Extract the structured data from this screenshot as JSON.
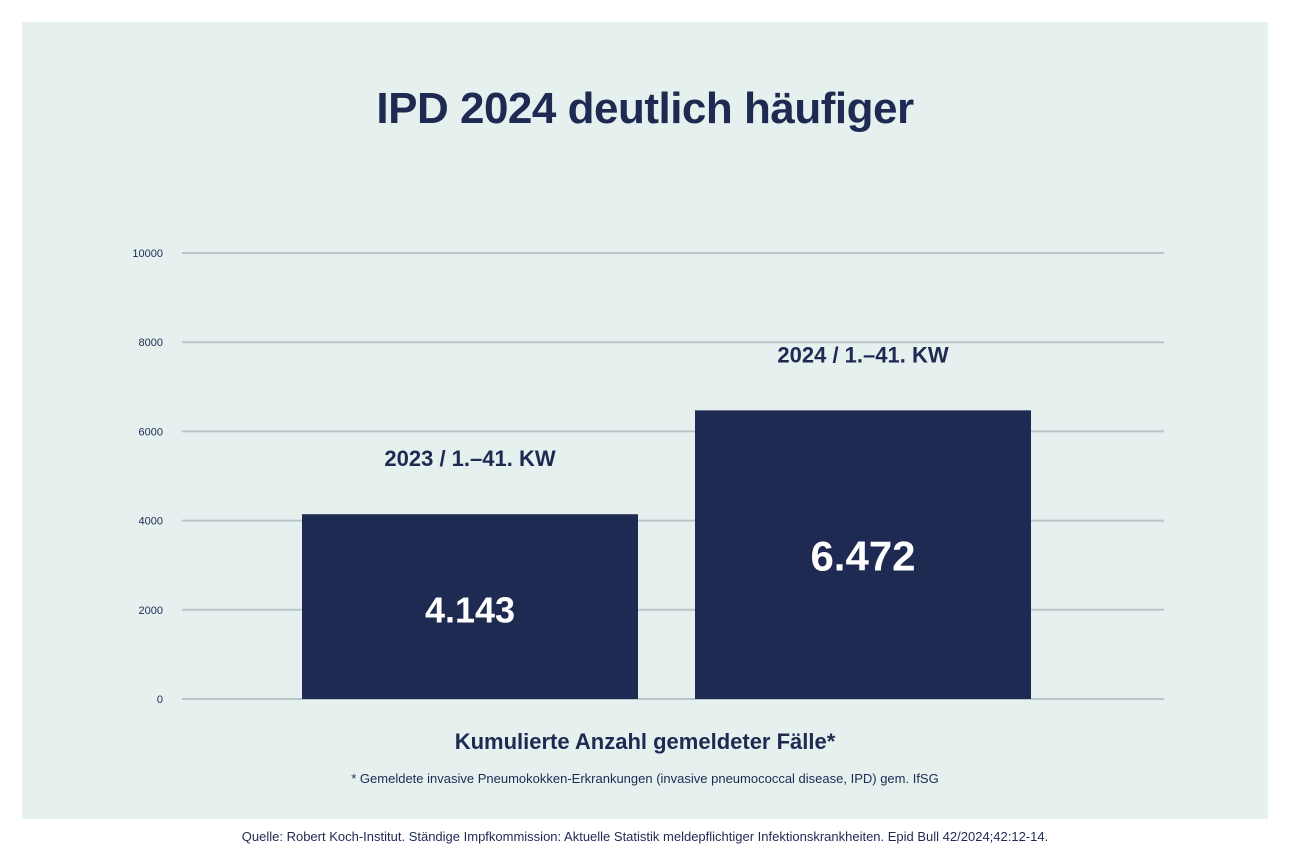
{
  "chart_data": {
    "type": "bar",
    "title": "IPD 2024 deutlich häufiger",
    "categories": [
      "2023 / 1.–41. KW",
      "2024 / 1.–41. KW"
    ],
    "values": [
      4143,
      6472
    ],
    "data_labels": [
      "4.143",
      "6.472"
    ],
    "xlabel": "Kumulierte Anzahl gemeldeter Fälle*",
    "ylabel": "",
    "ylim": [
      0,
      10000
    ],
    "yticks": [
      0,
      2000,
      4000,
      6000,
      8000,
      10000
    ],
    "grid": true,
    "colors": {
      "bar": "#1e2a52",
      "grid": "#b8c6cc",
      "text": "#1e2a52",
      "background": "#e6f0ef"
    }
  },
  "footnote": "* Gemeldete invasive Pneumokokken-Erkrankungen (invasive pneumococcal disease, IPD) gem. IfSG",
  "source": "Quelle: Robert Koch-Institut. Ständige Impfkommission: Aktuelle  Statistik meldepflichtiger Infektionskrankheiten. Epid Bull 42/2024;42:12-14."
}
